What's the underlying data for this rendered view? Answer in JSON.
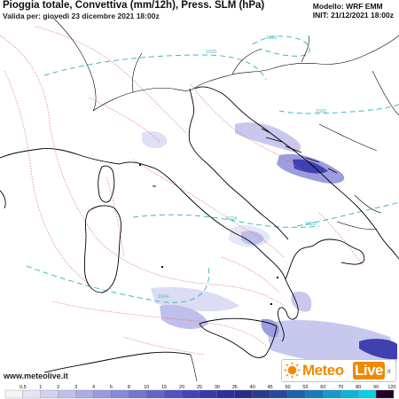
{
  "header": {
    "title": "Pioggia totale, Convettiva (mm/12h), Press. SLM (hPa)",
    "valid": "Valida per: giovedì 23 dicembre 2021 18:00z",
    "model": "Modello: WRF EMM",
    "init": "INIT: 21/12/2021 18:00z"
  },
  "footer": {
    "website": "www.meteolive.it",
    "logo_meteo": "Meteo",
    "logo_live": "Live",
    "logo_it": ".it"
  },
  "isobars": [
    {
      "label": "1016",
      "color": "#40b8c8"
    },
    {
      "label": "1020",
      "color": "#40b8c8"
    },
    {
      "label": "1020",
      "color": "#40b8c8"
    },
    {
      "label": "1024",
      "color": "#40b8c8"
    },
    {
      "label": "1024",
      "color": "#40b8c8"
    },
    {
      "label": "1020",
      "color": "#40b8c8"
    }
  ],
  "legend": {
    "ticks": [
      "0.5",
      "1",
      "2",
      "3",
      "4",
      "6",
      "8",
      "10",
      "15",
      "20",
      "25",
      "30",
      "35",
      "40",
      "45",
      "50",
      "55",
      "60",
      "70",
      "80",
      "90",
      "120"
    ],
    "colors": [
      "#f4f4f4",
      "#e4e4f6",
      "#d2d2f0",
      "#bfbfea",
      "#acace4",
      "#9a9ade",
      "#8888d8",
      "#7676d0",
      "#6464c8",
      "#5252c0",
      "#4444b8",
      "#3838a8",
      "#2e2e98",
      "#2a2a88",
      "#2a3a8a",
      "#254a9a",
      "#2060aa",
      "#1a7ab8",
      "#1898c8",
      "#10b4d6",
      "#0ad0e2",
      "#220022"
    ]
  },
  "colors": {
    "coast": "#000000",
    "isobar": "#40b8c8",
    "precip_contour": "#e87070",
    "precip_light": "#dcdcf4",
    "precip_mid": "#9c9ce0",
    "precip_dark": "#4040b0",
    "brand_orange": "#f08a00"
  }
}
